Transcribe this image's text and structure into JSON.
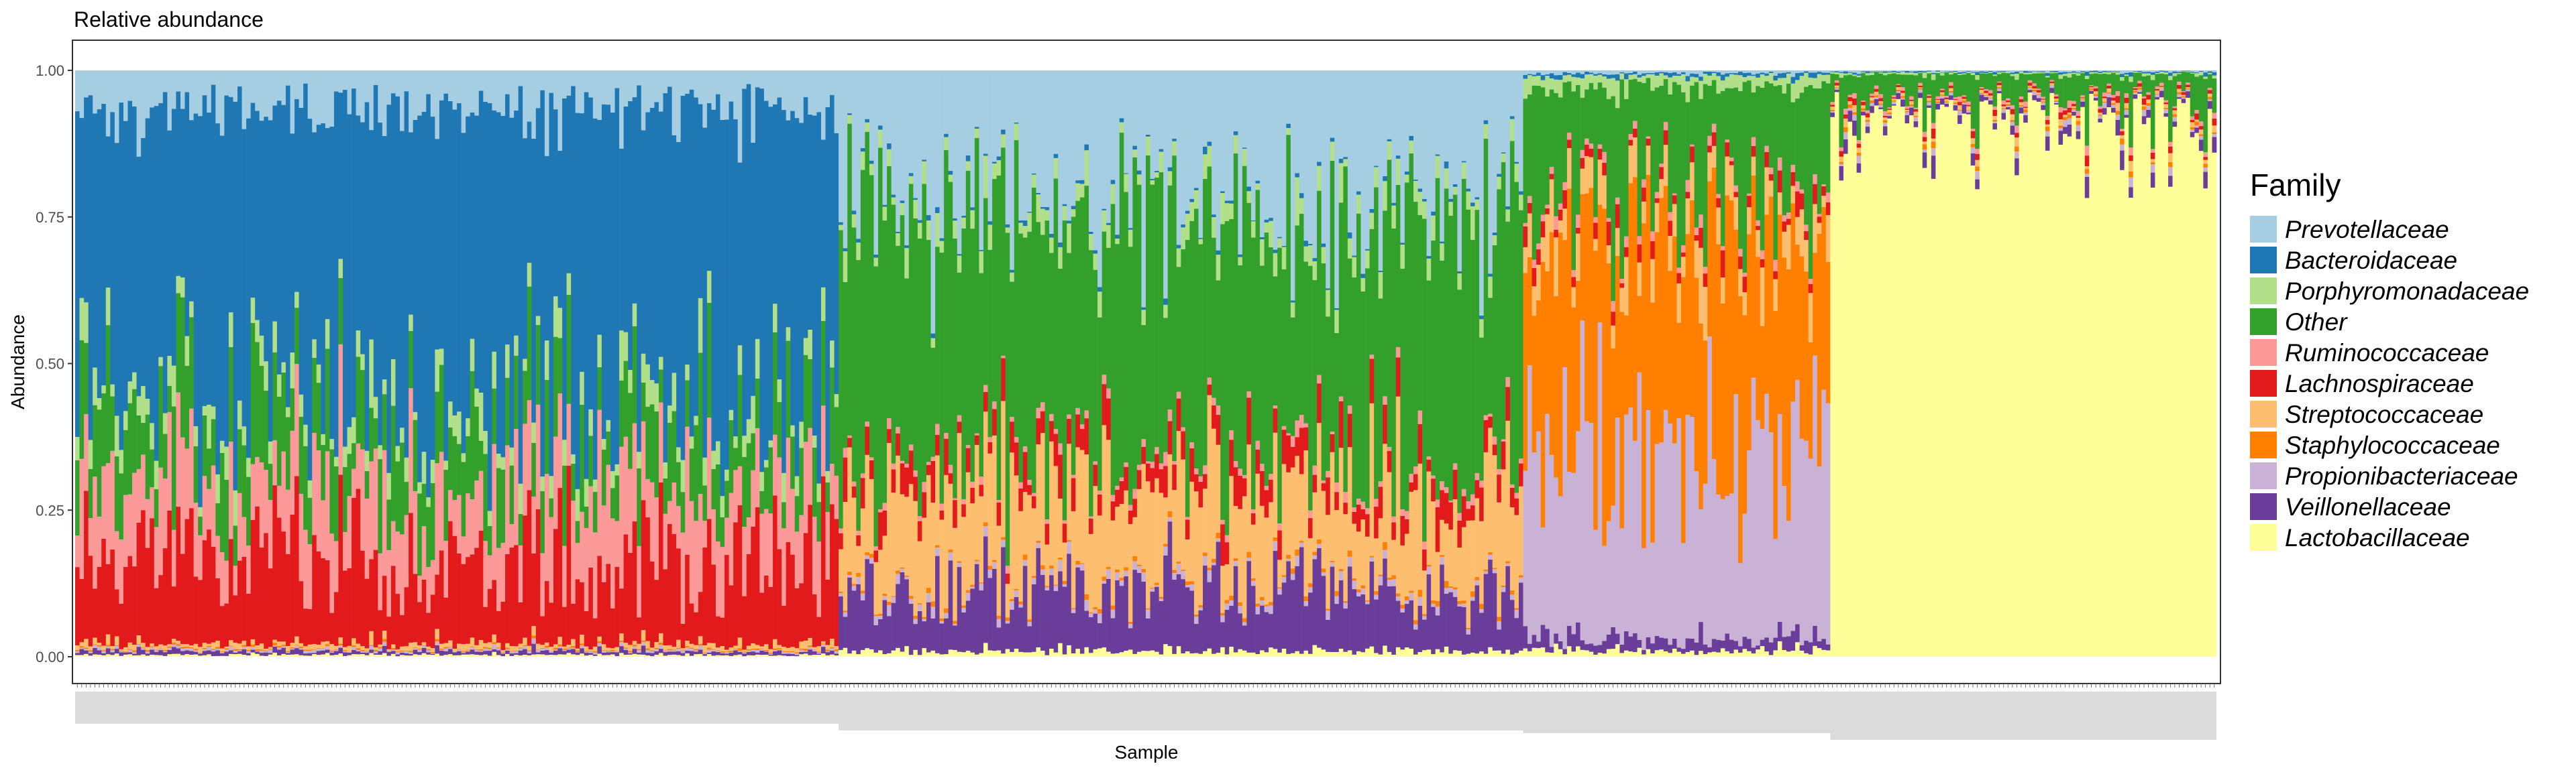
{
  "chart_data": {
    "type": "bar",
    "stacked": true,
    "title": "Relative abundance",
    "xlabel": "Sample",
    "ylabel": "Abundance",
    "ylim": [
      0,
      1
    ],
    "yticks": [
      "0.00",
      "0.25",
      "0.50",
      "0.75",
      "1.00"
    ],
    "grid": false,
    "legend_position": "right",
    "legend_title": "Family",
    "families": [
      {
        "name": "Prevotellaceae",
        "color": "#a6cee3"
      },
      {
        "name": "Bacteroidaceae",
        "color": "#1f78b4"
      },
      {
        "name": "Porphyromonadaceae",
        "color": "#b2df8a"
      },
      {
        "name": "Other",
        "color": "#33a02c"
      },
      {
        "name": "Ruminococcaceae",
        "color": "#fb9a99"
      },
      {
        "name": "Lachnospiraceae",
        "color": "#e31a1c"
      },
      {
        "name": "Streptococcaceae",
        "color": "#fdbf6f"
      },
      {
        "name": "Staphylococcaceae",
        "color": "#ff7f00"
      },
      {
        "name": "Propionibacteriaceae",
        "color": "#cab2d6"
      },
      {
        "name": "Veillonellaceae",
        "color": "#6a3d9a"
      },
      {
        "name": "Lactobacillaceae",
        "color": "#ffff99"
      }
    ],
    "stack_order_bottom_to_top": [
      "Lactobacillaceae",
      "Veillonellaceae",
      "Propionibacteriaceae",
      "Staphylococcaceae",
      "Streptococcaceae",
      "Lachnospiraceae",
      "Ruminococcaceae",
      "Other",
      "Porphyromonadaceae",
      "Bacteroidaceae",
      "Prevotellaceae"
    ],
    "sample_groups": [
      {
        "n_samples": 174,
        "mean_composition": {
          "Lactobacillaceae": 0.003,
          "Veillonellaceae": 0.006,
          "Propionibacteriaceae": 0.003,
          "Staphylococcaceae": 0.002,
          "Streptococcaceae": 0.008,
          "Lachnospiraceae": 0.14,
          "Ruminococcaceae": 0.12,
          "Other": 0.11,
          "Porphyromonadaceae": 0.04,
          "Bacteroidaceae": 0.5,
          "Prevotellaceae": 0.068
        }
      },
      {
        "n_samples": 156,
        "mean_composition": {
          "Lactobacillaceae": 0.01,
          "Veillonellaceae": 0.1,
          "Propionibacteriaceae": 0.01,
          "Staphylococcaceae": 0.005,
          "Streptococcaceae": 0.15,
          "Lachnospiraceae": 0.04,
          "Ruminococcaceae": 0.01,
          "Other": 0.42,
          "Porphyromonadaceae": 0.03,
          "Bacteroidaceae": 0.005,
          "Prevotellaceae": 0.22
        }
      },
      {
        "n_samples": 70,
        "mean_composition": {
          "Lactobacillaceae": 0.01,
          "Veillonellaceae": 0.02,
          "Propionibacteriaceae": 0.32,
          "Staphylococcaceae": 0.35,
          "Streptococcaceae": 0.05,
          "Lachnospiraceae": 0.02,
          "Ruminococcaceae": 0.01,
          "Other": 0.19,
          "Porphyromonadaceae": 0.02,
          "Bacteroidaceae": 0.005,
          "Prevotellaceae": 0.005
        }
      },
      {
        "n_samples": 88,
        "mean_composition": {
          "Lactobacillaceae": 0.92,
          "Veillonellaceae": 0.01,
          "Propionibacteriaceae": 0.005,
          "Staphylococcaceae": 0.003,
          "Streptococcaceae": 0.005,
          "Lachnospiraceae": 0.005,
          "Ruminococcaceae": 0.005,
          "Other": 0.04,
          "Porphyromonadaceae": 0.003,
          "Bacteroidaceae": 0.002,
          "Prevotellaceae": 0.002
        }
      }
    ]
  }
}
